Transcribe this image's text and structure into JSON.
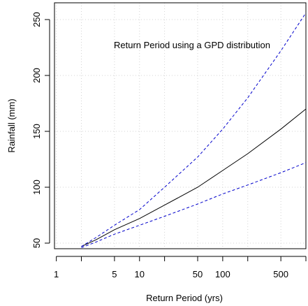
{
  "chart_data": {
    "type": "line",
    "title": "Return Period using a GPD distribution",
    "xlabel": "Return Period (yrs)",
    "ylabel": "Rainfall (mm)",
    "x_scale": "log",
    "xlim": [
      0.95,
      1000
    ],
    "ylim": [
      45,
      265
    ],
    "x_ticks": [
      1,
      2,
      5,
      10,
      20,
      50,
      100,
      200,
      500,
      1000
    ],
    "x_tick_labels": [
      "1",
      "",
      "5",
      "10",
      "",
      "50",
      "100",
      "",
      "500",
      ""
    ],
    "y_ticks": [
      50,
      100,
      150,
      200,
      250
    ],
    "y_tick_labels": [
      "50",
      "100",
      "150",
      "200",
      "250"
    ],
    "grid": true,
    "colors": {
      "estimate": "#000000",
      "bounds": "#0000cc",
      "grid": "#d3d3d3"
    },
    "series": [
      {
        "style": "solid",
        "x": [
          2,
          3,
          5,
          10,
          20,
          50,
          100,
          200,
          500,
          1000
        ],
        "y": [
          47,
          53,
          62,
          72,
          84,
          100,
          115,
          130,
          152,
          170
        ]
      },
      {
        "style": "dashed",
        "x": [
          2,
          3,
          5,
          10,
          20,
          50,
          100,
          200,
          500,
          1000
        ],
        "y": [
          47,
          55,
          66,
          80,
          100,
          127,
          152,
          180,
          222,
          256
        ]
      },
      {
        "style": "dashed",
        "x": [
          2,
          3,
          5,
          10,
          20,
          50,
          100,
          200,
          500,
          1000
        ],
        "y": [
          46,
          51,
          58,
          66,
          74,
          85,
          94,
          102,
          113,
          122
        ]
      }
    ]
  }
}
